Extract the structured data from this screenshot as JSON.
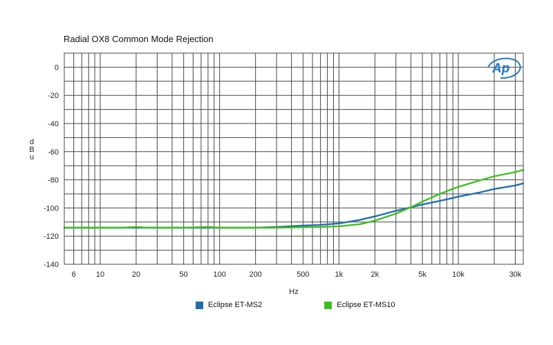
{
  "chart_data": {
    "type": "line",
    "title": "Radial OX8 Common Mode Rejection",
    "xlabel": "Hz",
    "ylabel": "dBu",
    "xscale": "log",
    "xlim": [
      5,
      35000
    ],
    "ylim": [
      -140,
      10
    ],
    "grid": true,
    "legend_position": "bottom",
    "logo_text": "Ap",
    "x_ticks": [
      {
        "value": 6,
        "label": "6"
      },
      {
        "value": 10,
        "label": "10"
      },
      {
        "value": 20,
        "label": "20"
      },
      {
        "value": 50,
        "label": "50"
      },
      {
        "value": 100,
        "label": "100"
      },
      {
        "value": 200,
        "label": "200"
      },
      {
        "value": 500,
        "label": "500"
      },
      {
        "value": 1000,
        "label": "1k"
      },
      {
        "value": 2000,
        "label": "2k"
      },
      {
        "value": 5000,
        "label": "5k"
      },
      {
        "value": 10000,
        "label": "10k"
      },
      {
        "value": 30000,
        "label": "30k"
      }
    ],
    "y_ticks": [
      {
        "value": 0,
        "label": "0"
      },
      {
        "value": -20,
        "label": "-20"
      },
      {
        "value": -40,
        "label": "-40"
      },
      {
        "value": -60,
        "label": "-60"
      },
      {
        "value": -80,
        "label": "-80"
      },
      {
        "value": -100,
        "label": "-100"
      },
      {
        "value": -120,
        "label": "-120"
      },
      {
        "value": -140,
        "label": "-140"
      }
    ],
    "series": [
      {
        "name": "Eclipse ET-MS2",
        "color": "#1f6fb0",
        "x": [
          5,
          10,
          20,
          30,
          50,
          100,
          200,
          300,
          500,
          700,
          1000,
          1500,
          2000,
          3000,
          4000,
          5000,
          7000,
          10000,
          15000,
          20000,
          30000,
          35000
        ],
        "y": [
          -114,
          -114,
          -114,
          -114,
          -114,
          -114,
          -114,
          -113.5,
          -112.5,
          -112,
          -111,
          -108.5,
          -106,
          -102,
          -99.5,
          -97.5,
          -95,
          -92,
          -89,
          -86.5,
          -84,
          -82.5
        ]
      },
      {
        "name": "Eclipse ET-MS10",
        "color": "#3fbf1f",
        "x": [
          5,
          10,
          15,
          20,
          25,
          30,
          50,
          80,
          100,
          120,
          200,
          300,
          500,
          700,
          1000,
          1500,
          2000,
          3000,
          4000,
          5000,
          7000,
          10000,
          15000,
          20000,
          30000,
          35000
        ],
        "y": [
          -114,
          -114,
          -114,
          -113.5,
          -114,
          -114,
          -114,
          -113.5,
          -114,
          -114,
          -114,
          -114,
          -113.7,
          -113.5,
          -113,
          -111.5,
          -109,
          -104,
          -99.5,
          -95.5,
          -90,
          -85,
          -80.5,
          -77.5,
          -74.5,
          -73
        ]
      }
    ]
  }
}
